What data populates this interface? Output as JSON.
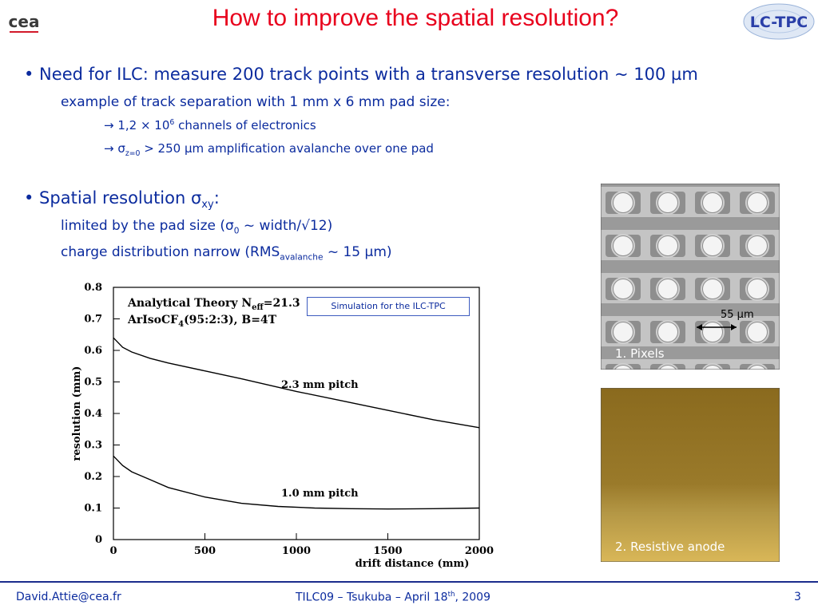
{
  "header": {
    "title": "How to improve the spatial resolution?",
    "logo_left_text": "cea",
    "logo_right_text": "LC-TPC"
  },
  "bullet1": {
    "text": "• Need for ILC: measure 200 track points with a transverse resolution ~ 100 µm",
    "sub": "example of track separation with 1 mm x 6 mm pad size:",
    "arrow1_a": "1,2 × 10",
    "arrow1_sup": "6",
    "arrow1_b": " channels of electronics",
    "arrow2_sigma": "σ",
    "arrow2_sub": "z=0",
    "arrow2_b": " > 250 µm  amplification avalanche over one pad"
  },
  "bullet2": {
    "text_a": "• Spatial resolution σ",
    "text_sub": "xy",
    "text_b": ":",
    "line1_a": "limited by the pad size (σ",
    "line1_sub": "0",
    "line1_b": " ~ width/√12)",
    "line2_a": "charge distribution narrow (RMS",
    "line2_sub": "avalanche",
    "line2_b": " ~ 15 µm)"
  },
  "sim_label": "Simulation for the ILC-TPC",
  "chart_data": {
    "type": "line",
    "xlabel": "drift distance (mm)",
    "ylabel": "resolution (mm)",
    "xlim": [
      0,
      2000
    ],
    "ylim": [
      0,
      0.8
    ],
    "xticks": [
      "0",
      "500",
      "1000",
      "1500",
      "2000"
    ],
    "yticks": [
      "0",
      "0.1",
      "0.2",
      "0.3",
      "0.4",
      "0.5",
      "0.6",
      "0.7",
      "0.8"
    ],
    "annotation_line1": "Analytical Theory N",
    "annotation_line1_sub": "eff",
    "annotation_line1_b": "=21.3",
    "annotation_line2": "ArIsoCF",
    "annotation_line2_sub": "4",
    "annotation_line2_b": "(95:2:3), B=4T",
    "series": [
      {
        "name": "2.3 mm pitch",
        "x": [
          0,
          50,
          100,
          200,
          300,
          500,
          700,
          1000,
          1250,
          1500,
          1750,
          2000
        ],
        "y": [
          0.64,
          0.61,
          0.595,
          0.575,
          0.56,
          0.535,
          0.51,
          0.47,
          0.44,
          0.41,
          0.38,
          0.355
        ]
      },
      {
        "name": "1.0 mm pitch",
        "x": [
          0,
          50,
          100,
          200,
          300,
          500,
          700,
          900,
          1100,
          1300,
          1500,
          1750,
          2000
        ],
        "y": [
          0.265,
          0.235,
          0.215,
          0.19,
          0.165,
          0.135,
          0.115,
          0.105,
          0.1,
          0.098,
          0.097,
          0.098,
          0.1
        ]
      }
    ]
  },
  "photo1": {
    "label": "1. Pixels",
    "scale": "55 μm"
  },
  "photo2": {
    "label": "2. Resistive anode"
  },
  "footer": {
    "email": "David.Attie@cea.fr",
    "center_a": "TILC09 – Tsukuba – April 18",
    "center_sup": "th",
    "center_b": ", 2009",
    "page": "3"
  }
}
